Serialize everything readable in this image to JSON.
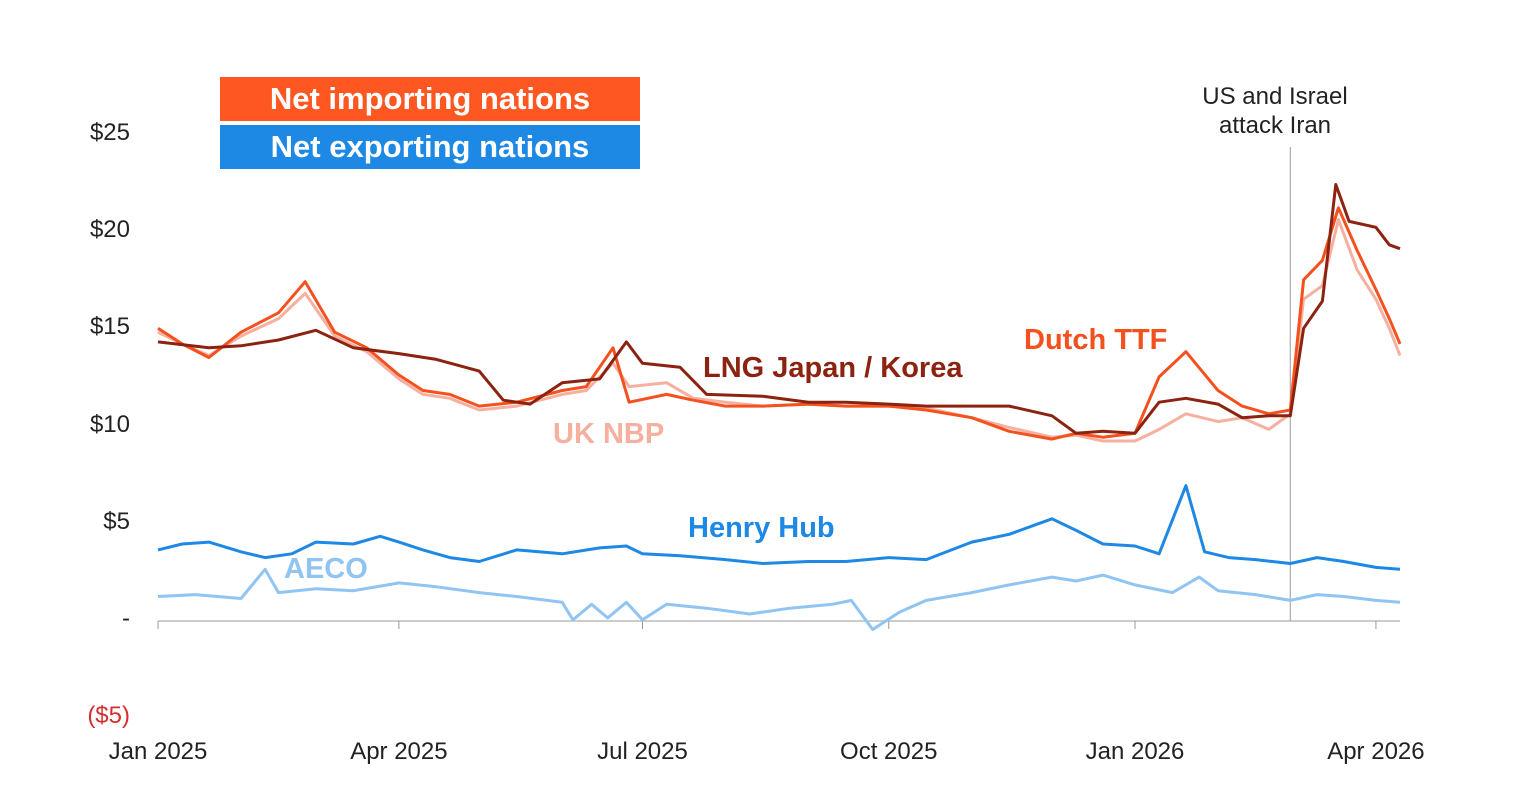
{
  "legend": {
    "import": {
      "label": "Net importing nations",
      "color": "#FF5722"
    },
    "export": {
      "label": "Net exporting nations",
      "color": "#1E88E5"
    }
  },
  "annotation": {
    "text": "US and Israel\nattack Iran",
    "date": "2026-02-28"
  },
  "chart_data": {
    "type": "line",
    "ylim": [
      -5,
      25
    ],
    "xlim": [
      "2025-01-01",
      "2026-04-10"
    ],
    "y_ticks": [
      {
        "value": 25,
        "label": "$25"
      },
      {
        "value": 20,
        "label": "$20"
      },
      {
        "value": 15,
        "label": "$15"
      },
      {
        "value": 10,
        "label": "$10"
      },
      {
        "value": 5,
        "label": "$5"
      },
      {
        "value": 0,
        "label": "-"
      },
      {
        "value": -5,
        "label": "($5)",
        "color": "#D32F2F"
      }
    ],
    "x_ticks": [
      {
        "date": "2025-01-01",
        "label": "Jan 2025"
      },
      {
        "date": "2025-04-01",
        "label": "Apr 2025"
      },
      {
        "date": "2025-07-01",
        "label": "Jul 2025"
      },
      {
        "date": "2025-10-01",
        "label": "Oct 2025"
      },
      {
        "date": "2026-01-01",
        "label": "Jan 2026"
      },
      {
        "date": "2026-04-01",
        "label": "Apr 2026"
      }
    ],
    "series": [
      {
        "name": "UK NBP",
        "color": "#F6B0A0",
        "points": [
          [
            "2025-01-01",
            14.8
          ],
          [
            "2025-01-10",
            14.2
          ],
          [
            "2025-01-20",
            13.6
          ],
          [
            "2025-02-01",
            14.6
          ],
          [
            "2025-02-15",
            15.5
          ],
          [
            "2025-02-25",
            16.8
          ],
          [
            "2025-03-08",
            14.6
          ],
          [
            "2025-03-20",
            13.8
          ],
          [
            "2025-04-01",
            12.4
          ],
          [
            "2025-04-10",
            11.6
          ],
          [
            "2025-04-20",
            11.4
          ],
          [
            "2025-05-01",
            10.8
          ],
          [
            "2025-05-15",
            11.0
          ],
          [
            "2025-06-01",
            11.6
          ],
          [
            "2025-06-10",
            11.8
          ],
          [
            "2025-06-20",
            13.2
          ],
          [
            "2025-06-26",
            12.0
          ],
          [
            "2025-07-10",
            12.2
          ],
          [
            "2025-07-20",
            11.4
          ],
          [
            "2025-08-01",
            11.2
          ],
          [
            "2025-08-15",
            11.0
          ],
          [
            "2025-09-01",
            11.1
          ],
          [
            "2025-09-15",
            11.0
          ],
          [
            "2025-10-01",
            11.0
          ],
          [
            "2025-10-15",
            10.9
          ],
          [
            "2025-11-01",
            10.4
          ],
          [
            "2025-11-15",
            9.9
          ],
          [
            "2025-12-01",
            9.4
          ],
          [
            "2025-12-10",
            9.5
          ],
          [
            "2025-12-20",
            9.2
          ],
          [
            "2026-01-01",
            9.2
          ],
          [
            "2026-01-10",
            9.8
          ],
          [
            "2026-01-20",
            10.6
          ],
          [
            "2026-02-01",
            10.2
          ],
          [
            "2026-02-10",
            10.4
          ],
          [
            "2026-02-20",
            9.8
          ],
          [
            "2026-02-28",
            10.6
          ],
          [
            "2026-03-05",
            16.5
          ],
          [
            "2026-03-12",
            17.2
          ],
          [
            "2026-03-18",
            20.6
          ],
          [
            "2026-03-25",
            18.0
          ],
          [
            "2026-04-01",
            16.5
          ],
          [
            "2026-04-06",
            15.0
          ],
          [
            "2026-04-10",
            13.6
          ]
        ]
      },
      {
        "name": "Dutch TTF",
        "color": "#F4511E",
        "points": [
          [
            "2025-01-01",
            15.0
          ],
          [
            "2025-01-10",
            14.2
          ],
          [
            "2025-01-20",
            13.5
          ],
          [
            "2025-02-01",
            14.8
          ],
          [
            "2025-02-15",
            15.8
          ],
          [
            "2025-02-25",
            17.4
          ],
          [
            "2025-03-08",
            14.8
          ],
          [
            "2025-03-20",
            14.0
          ],
          [
            "2025-04-01",
            12.6
          ],
          [
            "2025-04-10",
            11.8
          ],
          [
            "2025-04-20",
            11.6
          ],
          [
            "2025-05-01",
            11.0
          ],
          [
            "2025-05-15",
            11.2
          ],
          [
            "2025-06-01",
            11.8
          ],
          [
            "2025-06-10",
            12.0
          ],
          [
            "2025-06-20",
            14.0
          ],
          [
            "2025-06-26",
            11.2
          ],
          [
            "2025-07-10",
            11.6
          ],
          [
            "2025-07-20",
            11.3
          ],
          [
            "2025-08-01",
            11.0
          ],
          [
            "2025-08-15",
            11.0
          ],
          [
            "2025-09-01",
            11.1
          ],
          [
            "2025-09-15",
            11.0
          ],
          [
            "2025-10-01",
            11.0
          ],
          [
            "2025-10-15",
            10.8
          ],
          [
            "2025-11-01",
            10.4
          ],
          [
            "2025-11-15",
            9.7
          ],
          [
            "2025-12-01",
            9.3
          ],
          [
            "2025-12-10",
            9.6
          ],
          [
            "2025-12-20",
            9.4
          ],
          [
            "2026-01-01",
            9.6
          ],
          [
            "2026-01-10",
            12.5
          ],
          [
            "2026-01-20",
            13.8
          ],
          [
            "2026-02-01",
            11.8
          ],
          [
            "2026-02-10",
            11.0
          ],
          [
            "2026-02-20",
            10.6
          ],
          [
            "2026-02-28",
            10.8
          ],
          [
            "2026-03-05",
            17.5
          ],
          [
            "2026-03-12",
            18.5
          ],
          [
            "2026-03-18",
            21.2
          ],
          [
            "2026-03-25",
            19.0
          ],
          [
            "2026-04-01",
            17.0
          ],
          [
            "2026-04-06",
            15.5
          ],
          [
            "2026-04-10",
            14.2
          ]
        ]
      },
      {
        "name": "LNG Japan / Korea",
        "color": "#8B2310",
        "points": [
          [
            "2025-01-01",
            14.3
          ],
          [
            "2025-01-20",
            14.0
          ],
          [
            "2025-02-01",
            14.1
          ],
          [
            "2025-02-15",
            14.4
          ],
          [
            "2025-03-01",
            14.9
          ],
          [
            "2025-03-15",
            14.0
          ],
          [
            "2025-04-01",
            13.7
          ],
          [
            "2025-04-15",
            13.4
          ],
          [
            "2025-05-01",
            12.8
          ],
          [
            "2025-05-10",
            11.3
          ],
          [
            "2025-05-20",
            11.1
          ],
          [
            "2025-06-01",
            12.2
          ],
          [
            "2025-06-15",
            12.4
          ],
          [
            "2025-06-25",
            14.3
          ],
          [
            "2025-07-01",
            13.2
          ],
          [
            "2025-07-15",
            13.0
          ],
          [
            "2025-07-25",
            11.6
          ],
          [
            "2025-08-15",
            11.5
          ],
          [
            "2025-09-01",
            11.2
          ],
          [
            "2025-09-15",
            11.2
          ],
          [
            "2025-10-01",
            11.1
          ],
          [
            "2025-10-15",
            11.0
          ],
          [
            "2025-11-01",
            11.0
          ],
          [
            "2025-11-15",
            11.0
          ],
          [
            "2025-12-01",
            10.5
          ],
          [
            "2025-12-10",
            9.6
          ],
          [
            "2025-12-20",
            9.7
          ],
          [
            "2026-01-01",
            9.6
          ],
          [
            "2026-01-10",
            11.2
          ],
          [
            "2026-01-20",
            11.4
          ],
          [
            "2026-02-01",
            11.1
          ],
          [
            "2026-02-10",
            10.4
          ],
          [
            "2026-02-20",
            10.5
          ],
          [
            "2026-02-28",
            10.5
          ],
          [
            "2026-03-05",
            15.0
          ],
          [
            "2026-03-12",
            16.4
          ],
          [
            "2026-03-17",
            22.4
          ],
          [
            "2026-03-22",
            20.5
          ],
          [
            "2026-04-01",
            20.2
          ],
          [
            "2026-04-06",
            19.3
          ],
          [
            "2026-04-10",
            19.1
          ]
        ]
      },
      {
        "name": "Henry Hub",
        "color": "#1E88E5",
        "points": [
          [
            "2025-01-01",
            3.6
          ],
          [
            "2025-01-10",
            3.9
          ],
          [
            "2025-01-20",
            4.0
          ],
          [
            "2025-02-01",
            3.5
          ],
          [
            "2025-02-10",
            3.2
          ],
          [
            "2025-02-20",
            3.4
          ],
          [
            "2025-03-01",
            4.0
          ],
          [
            "2025-03-15",
            3.9
          ],
          [
            "2025-03-25",
            4.3
          ],
          [
            "2025-04-01",
            4.0
          ],
          [
            "2025-04-10",
            3.6
          ],
          [
            "2025-04-20",
            3.2
          ],
          [
            "2025-05-01",
            3.0
          ],
          [
            "2025-05-15",
            3.6
          ],
          [
            "2025-06-01",
            3.4
          ],
          [
            "2025-06-15",
            3.7
          ],
          [
            "2025-06-25",
            3.8
          ],
          [
            "2025-07-01",
            3.4
          ],
          [
            "2025-07-15",
            3.3
          ],
          [
            "2025-08-01",
            3.1
          ],
          [
            "2025-08-15",
            2.9
          ],
          [
            "2025-09-01",
            3.0
          ],
          [
            "2025-09-15",
            3.0
          ],
          [
            "2025-10-01",
            3.2
          ],
          [
            "2025-10-15",
            3.1
          ],
          [
            "2025-11-01",
            4.0
          ],
          [
            "2025-11-15",
            4.4
          ],
          [
            "2025-12-01",
            5.2
          ],
          [
            "2025-12-10",
            4.6
          ],
          [
            "2025-12-20",
            3.9
          ],
          [
            "2026-01-01",
            3.8
          ],
          [
            "2026-01-10",
            3.4
          ],
          [
            "2026-01-20",
            6.9
          ],
          [
            "2026-01-27",
            3.5
          ],
          [
            "2026-02-05",
            3.2
          ],
          [
            "2026-02-15",
            3.1
          ],
          [
            "2026-02-28",
            2.9
          ],
          [
            "2026-03-10",
            3.2
          ],
          [
            "2026-03-20",
            3.0
          ],
          [
            "2026-04-01",
            2.7
          ],
          [
            "2026-04-10",
            2.6
          ]
        ]
      },
      {
        "name": "AECO",
        "color": "#90C4F2",
        "points": [
          [
            "2025-01-01",
            1.2
          ],
          [
            "2025-01-15",
            1.3
          ],
          [
            "2025-02-01",
            1.1
          ],
          [
            "2025-02-10",
            2.6
          ],
          [
            "2025-02-15",
            1.4
          ],
          [
            "2025-03-01",
            1.6
          ],
          [
            "2025-03-15",
            1.5
          ],
          [
            "2025-04-01",
            1.9
          ],
          [
            "2025-04-15",
            1.7
          ],
          [
            "2025-05-01",
            1.4
          ],
          [
            "2025-05-15",
            1.2
          ],
          [
            "2025-06-01",
            0.9
          ],
          [
            "2025-06-05",
            0.0
          ],
          [
            "2025-06-12",
            0.8
          ],
          [
            "2025-06-18",
            0.1
          ],
          [
            "2025-06-25",
            0.9
          ],
          [
            "2025-07-01",
            0.0
          ],
          [
            "2025-07-10",
            0.8
          ],
          [
            "2025-07-25",
            0.6
          ],
          [
            "2025-08-10",
            0.3
          ],
          [
            "2025-08-25",
            0.6
          ],
          [
            "2025-09-10",
            0.8
          ],
          [
            "2025-09-17",
            1.0
          ],
          [
            "2025-09-25",
            -0.5
          ],
          [
            "2025-10-05",
            0.4
          ],
          [
            "2025-10-15",
            1.0
          ],
          [
            "2025-11-01",
            1.4
          ],
          [
            "2025-11-15",
            1.8
          ],
          [
            "2025-12-01",
            2.2
          ],
          [
            "2025-12-10",
            2.0
          ],
          [
            "2025-12-20",
            2.3
          ],
          [
            "2026-01-01",
            1.8
          ],
          [
            "2026-01-15",
            1.4
          ],
          [
            "2026-01-25",
            2.2
          ],
          [
            "2026-02-01",
            1.5
          ],
          [
            "2026-02-15",
            1.3
          ],
          [
            "2026-02-28",
            1.0
          ],
          [
            "2026-03-10",
            1.3
          ],
          [
            "2026-03-20",
            1.2
          ],
          [
            "2026-04-01",
            1.0
          ],
          [
            "2026-04-10",
            0.9
          ]
        ]
      }
    ],
    "series_labels": [
      {
        "text": "LNG Japan / Korea",
        "series": "LNG Japan / Korea"
      },
      {
        "text": "Dutch TTF",
        "series": "Dutch TTF"
      },
      {
        "text": "UK NBP",
        "series": "UK NBP"
      },
      {
        "text": "Henry Hub",
        "series": "Henry Hub"
      },
      {
        "text": "AECO",
        "series": "AECO"
      }
    ]
  }
}
